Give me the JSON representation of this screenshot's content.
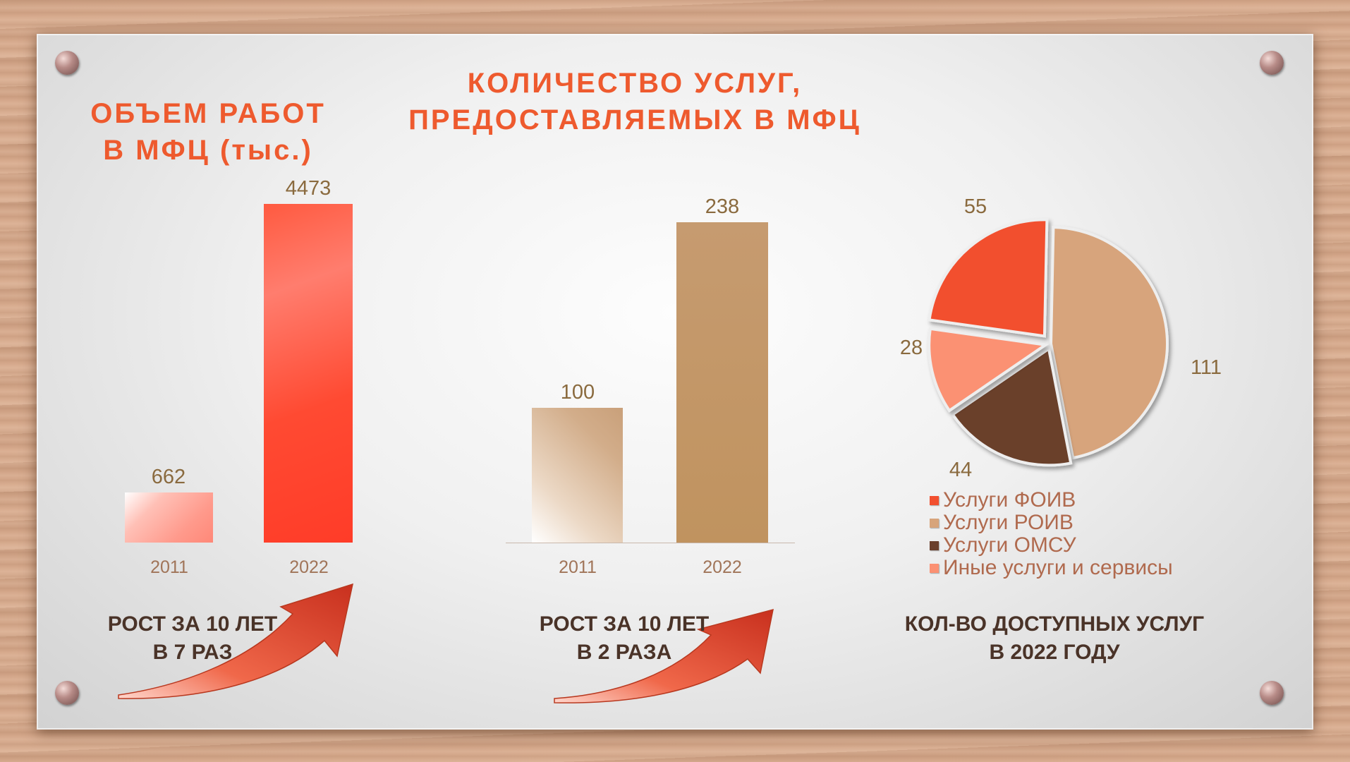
{
  "titles": {
    "left": [
      "ОБЪЕМ РАБОТ",
      "В МФЦ (тыс.)"
    ],
    "center": [
      "КОЛИЧЕСТВО УСЛУГ,",
      "ПРЕДОСТАВЛЯЕМЫХ В МФЦ"
    ]
  },
  "notes": {
    "left": [
      "РОСТ ЗА 10 ЛЕТ",
      "В 7 РАЗ"
    ],
    "center": [
      "РОСТ ЗА 10 ЛЕТ",
      "В 2 РАЗА"
    ],
    "right": [
      "КОЛ-ВО ДОСТУПНЫХ УСЛУГ",
      "В 2022 ГОДУ"
    ]
  },
  "chart_data": [
    {
      "type": "bar",
      "title": "ОБЪЕМ РАБОТ В МФЦ (тыс.)",
      "categories": [
        "2011",
        "2022"
      ],
      "values": [
        662,
        4473
      ],
      "value_labels": [
        "662",
        "4473"
      ],
      "colors": [
        "#ff9a8c",
        "#ff4a32"
      ]
    },
    {
      "type": "bar",
      "title": "КОЛИЧЕСТВО УСЛУГ, ПРЕДОСТАВЛЯЕМЫХ В МФЦ",
      "categories": [
        "2011",
        "2022"
      ],
      "values": [
        100,
        238
      ],
      "value_labels": [
        "100",
        "238"
      ],
      "colors": [
        "#d9b89a",
        "#c2956a"
      ]
    },
    {
      "type": "pie",
      "slices": [
        {
          "label": "Услуги ФОИВ",
          "value": 55,
          "value_label": "55",
          "color": "#f2502f"
        },
        {
          "label": "Услуги РОИВ",
          "value": 111,
          "value_label": "111",
          "color": "#d7a47b"
        },
        {
          "label": "Услуги ОМСУ",
          "value": 44,
          "value_label": "44",
          "color": "#6a3f2c"
        },
        {
          "label": "Иные услуги и сервисы",
          "value": 28,
          "value_label": "28",
          "color": "#fb9173"
        }
      ],
      "legend_position": "bottom"
    }
  ]
}
